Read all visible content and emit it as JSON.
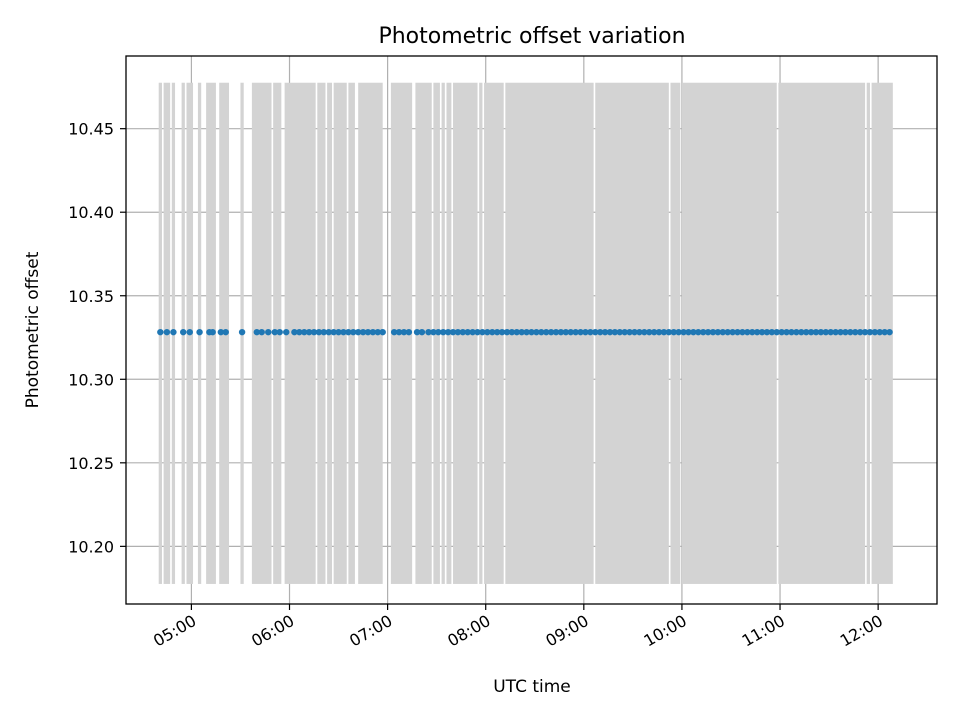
{
  "chart_data": {
    "type": "scatter",
    "title": "Photometric offset variation",
    "xlabel": "UTC time",
    "ylabel": "Photometric offset",
    "xlim": [
      "04:20",
      "12:36"
    ],
    "ylim": [
      10.1655,
      10.4935
    ],
    "yticks": [
      "10.20",
      "10.25",
      "10.30",
      "10.35",
      "10.40",
      "10.45"
    ],
    "xticks": [
      "05:00",
      "06:00",
      "07:00",
      "08:00",
      "09:00",
      "10:00",
      "11:00",
      "12:00"
    ],
    "x_tick_rotation_deg": 30,
    "grid": true,
    "point_color": "#1f77b4",
    "band_color": "#d3d3d3",
    "band_yrange": [
      10.1775,
      10.4775
    ],
    "series": [
      {
        "value": 10.3282,
        "times": [
          "04:41",
          "04:45",
          "04:49",
          "04:55",
          "04:59",
          "05:05",
          "05:11",
          "05:13",
          "05:18",
          "05:21",
          "05:31",
          "05:40",
          "05:43",
          "05:47",
          "05:51",
          "05:54",
          "05:58",
          "06:03",
          "06:06",
          "06:09",
          "06:12",
          "06:15",
          "06:18",
          "06:21",
          "06:24",
          "06:27",
          "06:30",
          "06:33",
          "06:36",
          "06:39",
          "06:42",
          "06:45",
          "06:48",
          "06:51",
          "06:54",
          "06:57",
          "07:04",
          "07:07",
          "07:10",
          "07:13",
          "07:18",
          "07:21",
          "07:25",
          "07:28",
          "07:31",
          "07:34",
          "07:37",
          "07:40",
          "07:43",
          "07:46",
          "07:49",
          "07:52",
          "07:55",
          "07:58",
          "08:01",
          "08:04",
          "08:07",
          "08:10",
          "08:13",
          "08:16",
          "08:19",
          "08:22",
          "08:25",
          "08:28",
          "08:31",
          "08:34",
          "08:37",
          "08:40",
          "08:43",
          "08:46",
          "08:49",
          "08:52",
          "08:55",
          "08:58",
          "09:01",
          "09:04",
          "09:07",
          "09:10",
          "09:13",
          "09:16",
          "09:19",
          "09:22",
          "09:25",
          "09:28",
          "09:31",
          "09:34",
          "09:37",
          "09:40",
          "09:43",
          "09:46",
          "09:49",
          "09:52",
          "09:55",
          "09:58",
          "10:01",
          "10:04",
          "10:07",
          "10:10",
          "10:13",
          "10:16",
          "10:19",
          "10:22",
          "10:25",
          "10:28",
          "10:31",
          "10:34",
          "10:37",
          "10:40",
          "10:43",
          "10:46",
          "10:49",
          "10:52",
          "10:55",
          "10:58",
          "11:01",
          "11:04",
          "11:07",
          "11:10",
          "11:13",
          "11:16",
          "11:19",
          "11:22",
          "11:25",
          "11:28",
          "11:31",
          "11:34",
          "11:37",
          "11:40",
          "11:43",
          "11:46",
          "11:49",
          "11:52",
          "11:55",
          "11:58",
          "12:01",
          "12:04",
          "12:07"
        ]
      }
    ],
    "bands": [
      [
        "04:40",
        "04:42"
      ],
      [
        "04:43",
        "04:47"
      ],
      [
        "04:48",
        "04:50"
      ],
      [
        "04:54",
        "04:56"
      ],
      [
        "04:57",
        "05:01"
      ],
      [
        "05:04",
        "05:06"
      ],
      [
        "05:09",
        "05:15"
      ],
      [
        "05:17",
        "05:23"
      ],
      [
        "05:30",
        "05:32"
      ],
      [
        "05:37",
        "05:49"
      ],
      [
        "05:50",
        "05:55"
      ],
      [
        "05:57",
        "06:16"
      ],
      [
        "06:17",
        "06:22"
      ],
      [
        "06:23",
        "06:26"
      ],
      [
        "06:27",
        "06:35"
      ],
      [
        "06:36",
        "06:40"
      ],
      [
        "06:42",
        "06:57"
      ],
      [
        "07:02",
        "07:15"
      ],
      [
        "07:17",
        "07:27"
      ],
      [
        "07:28",
        "07:32"
      ],
      [
        "07:33",
        "07:35"
      ],
      [
        "07:36",
        "07:39"
      ],
      [
        "07:40",
        "07:55"
      ],
      [
        "07:56",
        "07:58"
      ],
      [
        "07:59",
        "08:11"
      ],
      [
        "08:12",
        "09:06"
      ],
      [
        "09:07",
        "09:52"
      ],
      [
        "09:53",
        "09:59"
      ],
      [
        "10:00",
        "10:58"
      ],
      [
        "10:59",
        "11:52"
      ],
      [
        "11:53",
        "11:55"
      ],
      [
        "11:56",
        "12:09"
      ]
    ]
  }
}
